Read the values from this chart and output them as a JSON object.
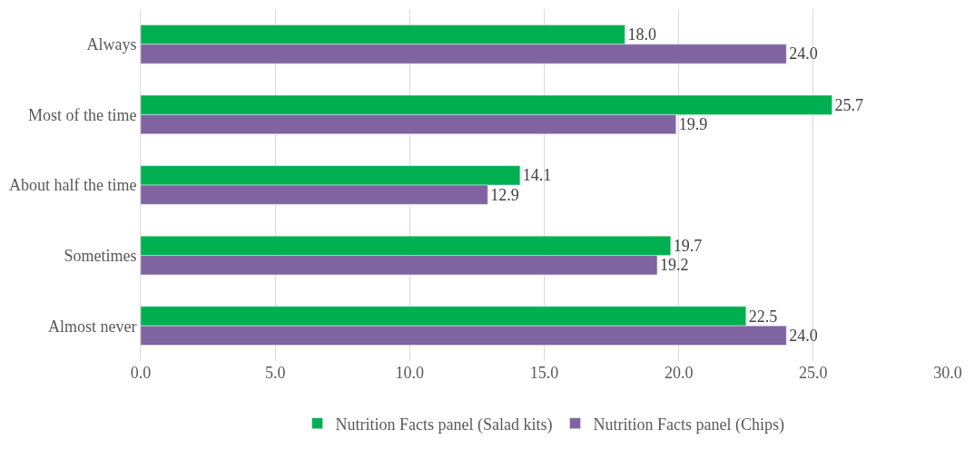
{
  "chart_data": {
    "type": "bar",
    "orientation": "horizontal",
    "categories": [
      "Always",
      "Most of the time",
      "About half the time",
      "Sometimes",
      "Almost never"
    ],
    "series": [
      {
        "name": "Nutrition Facts panel (Salad kits)",
        "color": "#00b050",
        "values": [
          18.0,
          25.7,
          14.1,
          19.7,
          22.5
        ],
        "value_labels": [
          "18.0",
          "25.7",
          "14.1",
          "19.7",
          "22.5"
        ]
      },
      {
        "name": "Nutrition Facts panel (Chips)",
        "color": "#8064a2",
        "values": [
          24.0,
          19.9,
          12.9,
          19.2,
          24.0
        ],
        "value_labels": [
          "24.0",
          "19.9",
          "12.9",
          "19.2",
          "24.0"
        ]
      }
    ],
    "xlim": [
      0,
      30
    ],
    "xticks": [
      {
        "value": 0,
        "label": "0.0"
      },
      {
        "value": 5,
        "label": "5.0"
      },
      {
        "value": 10,
        "label": "10.0"
      },
      {
        "value": 15,
        "label": "15.0"
      },
      {
        "value": 20,
        "label": "20.0"
      },
      {
        "value": 25,
        "label": "25.0"
      },
      {
        "value": 30,
        "label": "30.0"
      }
    ],
    "grid": "x",
    "legend": "bottom"
  }
}
